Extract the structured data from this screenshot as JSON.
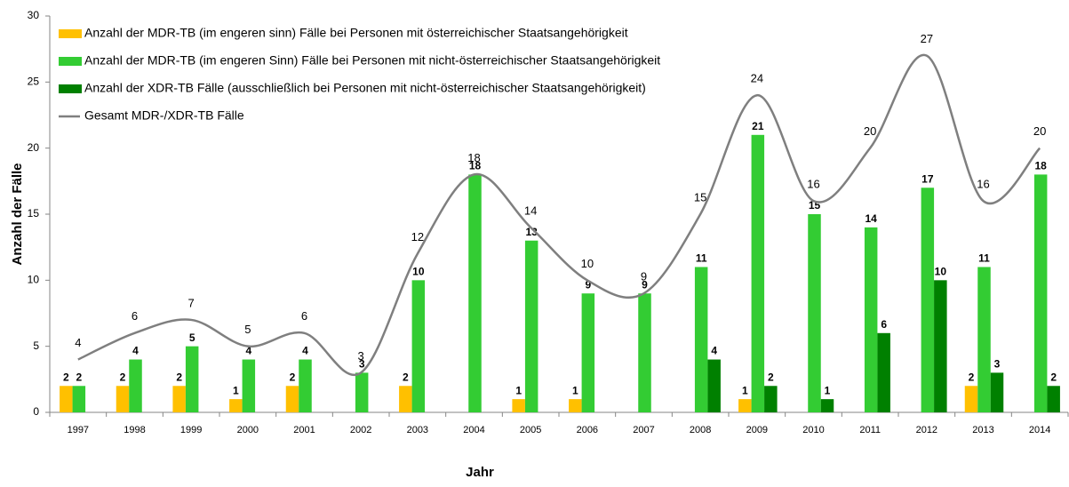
{
  "chart_data": {
    "type": "bar",
    "x_label": "Jahr",
    "y_label": "Anzahl der Fälle",
    "categories": [
      "1997",
      "1998",
      "1999",
      "2000",
      "2001",
      "2002",
      "2003",
      "2004",
      "2005",
      "2006",
      "2007",
      "2008",
      "2009",
      "2010",
      "2011",
      "2012",
      "2013",
      "2014"
    ],
    "series": [
      {
        "name": "Anzahl der MDR-TB (im engeren sinn) Fälle bei Personen mit österreichischer Staatsangehörigkeit",
        "color": "#ffc000",
        "label_color": "#ffc000",
        "values": [
          2,
          2,
          2,
          1,
          2,
          null,
          2,
          null,
          1,
          1,
          null,
          null,
          1,
          null,
          null,
          null,
          2,
          null
        ]
      },
      {
        "name": "Anzahl der MDR-TB (im engeren Sinn) Fälle bei Personen mit nicht-österreichischer Staatsangehörigkeit",
        "color": "#33cc33",
        "label_color": "#66bb33",
        "values": [
          2,
          4,
          5,
          4,
          4,
          3,
          10,
          18,
          13,
          9,
          9,
          11,
          21,
          15,
          14,
          17,
          11,
          18
        ]
      },
      {
        "name": "Anzahl der XDR-TB Fälle (ausschließlich bei Personen mit nicht-österreichischer Staatsangehörigkeit)",
        "color": "#008000",
        "label_color": "#6b8e23",
        "values": [
          null,
          null,
          null,
          null,
          null,
          null,
          null,
          null,
          null,
          null,
          null,
          4,
          2,
          1,
          6,
          10,
          3,
          2
        ]
      },
      {
        "name": "Gesamt MDR-/XDR-TB Fälle",
        "type": "line",
        "color": "#7f7f7f",
        "label_color": "#808080",
        "values": [
          4,
          6,
          7,
          5,
          6,
          3,
          12,
          18,
          14,
          10,
          9,
          15,
          24,
          16,
          20,
          27,
          16,
          20
        ]
      }
    ],
    "ylim": [
      0,
      30
    ],
    "yticks": [
      0,
      5,
      10,
      15,
      20,
      25,
      30
    ],
    "grid": false,
    "legend": "top-left"
  }
}
